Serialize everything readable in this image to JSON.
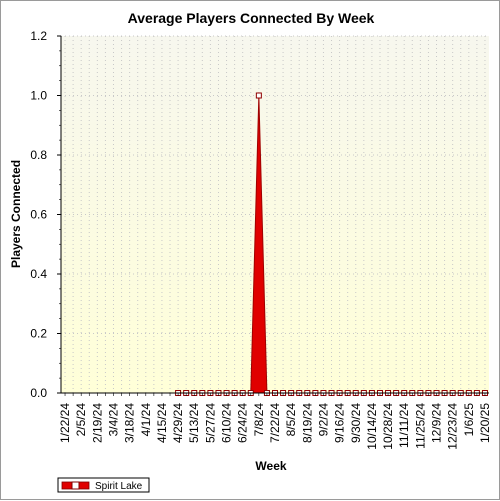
{
  "chart_data": {
    "type": "area",
    "title": "Average Players Connected By Week",
    "xlabel": "Week",
    "ylabel": "Players Connected",
    "ylim": [
      0,
      1.2
    ],
    "yticks": [
      "0.0",
      "0.2",
      "0.4",
      "0.6",
      "0.8",
      "1.0",
      "1.2"
    ],
    "grid": true,
    "legend_position": "bottom-left",
    "x_tick_labels": [
      "1/22/24",
      "2/5/24",
      "2/19/24",
      "3/4/24",
      "3/18/24",
      "4/1/24",
      "4/15/24",
      "4/29/24",
      "5/13/24",
      "5/27/24",
      "6/10/24",
      "6/24/24",
      "7/8/24",
      "7/22/24",
      "8/5/24",
      "8/19/24",
      "9/2/24",
      "9/16/24",
      "9/30/24",
      "10/14/24",
      "10/28/24",
      "11/11/24",
      "11/25/24",
      "12/9/24",
      "12/23/24",
      "1/6/25",
      "1/20/25"
    ],
    "x": [
      "1/22/24",
      "1/29/24",
      "2/5/24",
      "2/12/24",
      "2/19/24",
      "2/26/24",
      "3/4/24",
      "3/11/24",
      "3/18/24",
      "3/25/24",
      "4/1/24",
      "4/8/24",
      "4/15/24",
      "4/22/24",
      "4/29/24",
      "5/6/24",
      "5/13/24",
      "5/20/24",
      "5/27/24",
      "6/3/24",
      "6/10/24",
      "6/17/24",
      "6/24/24",
      "7/1/24",
      "7/8/24",
      "7/15/24",
      "7/22/24",
      "7/29/24",
      "8/5/24",
      "8/12/24",
      "8/19/24",
      "8/26/24",
      "9/2/24",
      "9/9/24",
      "9/16/24",
      "9/23/24",
      "9/30/24",
      "10/7/24",
      "10/14/24",
      "10/21/24",
      "10/28/24",
      "11/4/24",
      "11/11/24",
      "11/18/24",
      "11/25/24",
      "12/2/24",
      "12/9/24",
      "12/16/24",
      "12/23/24",
      "12/30/24",
      "1/6/25",
      "1/13/25",
      "1/20/25"
    ],
    "series": [
      {
        "name": "Spirit Lake",
        "color": "#e00000",
        "values": [
          null,
          null,
          null,
          null,
          null,
          null,
          null,
          null,
          null,
          null,
          null,
          null,
          null,
          null,
          0,
          0,
          0,
          0,
          0,
          0,
          0,
          0,
          0,
          0,
          1.0,
          0,
          0,
          0,
          0,
          0,
          0,
          0,
          0,
          0,
          0,
          0,
          0,
          0,
          0,
          0,
          0,
          0,
          0,
          0,
          0,
          0,
          0,
          0,
          0,
          0,
          0,
          0,
          0
        ]
      }
    ]
  },
  "colors": {
    "plot_bg_top": "#f8f8e8",
    "plot_bg_bottom": "#ffffe0",
    "series": "#e00000",
    "series_edge": "#a00000"
  }
}
